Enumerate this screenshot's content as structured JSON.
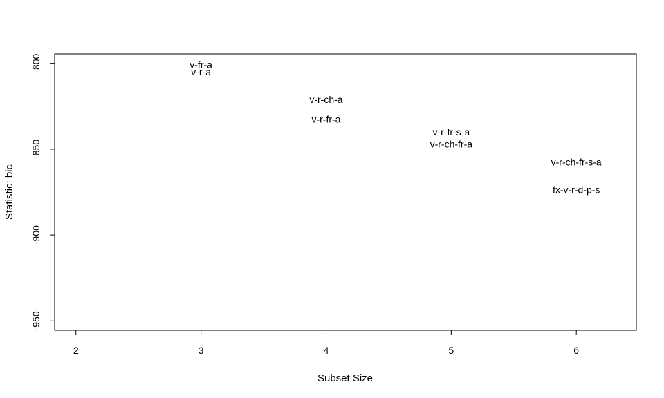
{
  "chart_data": {
    "type": "scatter",
    "xlabel": "Subset Size",
    "ylabel": "Statistic: bic",
    "xlim": [
      1.83,
      6.48
    ],
    "ylim": [
      -955.5,
      -794.5
    ],
    "x_ticks": [
      "2",
      "3",
      "4",
      "5",
      "6"
    ],
    "y_ticks": [
      "-800",
      "-850",
      "-900",
      "-950"
    ],
    "grid": false,
    "points": [
      {
        "x": 3,
        "y": -800.8,
        "label": "v-fr-a"
      },
      {
        "x": 3,
        "y": -805.0,
        "label": "v-r-a"
      },
      {
        "x": 4,
        "y": -821.0,
        "label": "v-r-ch-a"
      },
      {
        "x": 4,
        "y": -832.6,
        "label": "v-r-fr-a"
      },
      {
        "x": 5,
        "y": -839.9,
        "label": "v-r-fr-s-a"
      },
      {
        "x": 5,
        "y": -847.0,
        "label": "v-r-ch-fr-a"
      },
      {
        "x": 6,
        "y": -857.5,
        "label": "v-r-ch-fr-s-a"
      },
      {
        "x": 6,
        "y": -873.6,
        "label": "fx-v-r-d-p-s"
      }
    ]
  }
}
